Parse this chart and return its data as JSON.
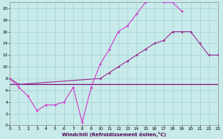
{
  "xlabel": "Windchill (Refroidissement éolien,°C)",
  "bg_color": "#c8eaea",
  "grid_color": "#a8d4d4",
  "xlim": [
    0,
    23
  ],
  "ylim": [
    0,
    21
  ],
  "xtick_vals": [
    0,
    1,
    2,
    3,
    4,
    5,
    6,
    7,
    8,
    9,
    10,
    11,
    12,
    13,
    14,
    15,
    16,
    17,
    18,
    19,
    20,
    21,
    22,
    23
  ],
  "ytick_vals": [
    0,
    2,
    4,
    6,
    8,
    10,
    12,
    14,
    16,
    18,
    20
  ],
  "curve1_x": [
    0,
    1,
    2,
    3,
    4,
    5,
    6,
    7,
    8,
    9,
    10,
    11,
    12,
    13,
    14,
    15,
    16,
    17,
    18,
    19
  ],
  "curve1_y": [
    8,
    6.5,
    5,
    2.5,
    3.5,
    3.5,
    4,
    6.5,
    0.5,
    6.5,
    10.5,
    13,
    16,
    17,
    19,
    21,
    21.5,
    21,
    21,
    19.5
  ],
  "curve2_x": [
    0,
    1,
    10,
    11,
    12,
    13,
    14,
    15,
    16,
    17,
    18,
    19,
    20,
    21,
    22,
    23
  ],
  "curve2_y": [
    8,
    7,
    8,
    9,
    10,
    11,
    12,
    13,
    14,
    14.5,
    16,
    16,
    16,
    14,
    12,
    12
  ],
  "curve3_x": [
    0,
    1,
    10,
    15,
    22,
    23
  ],
  "curve3_y": [
    7,
    7,
    7,
    7,
    7,
    7
  ],
  "lc1": "#cc44cc",
  "lc2": "#993399",
  "lc3": "#770077"
}
